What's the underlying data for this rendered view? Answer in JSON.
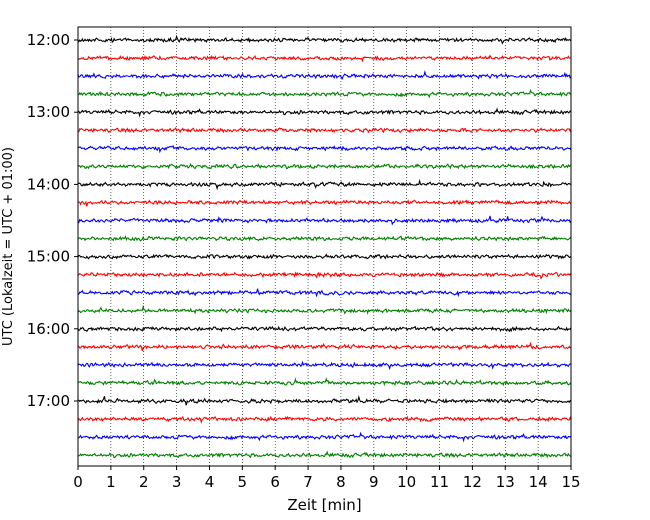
{
  "chart_data": {
    "type": "line",
    "title": "",
    "xlabel": "Zeit  [min]",
    "ylabel": "UTC (Lokalzeit = UTC + 01:00)",
    "xlim": [
      0,
      15
    ],
    "x_ticks": [
      0,
      1,
      2,
      3,
      4,
      5,
      6,
      7,
      8,
      9,
      10,
      11,
      12,
      13,
      14,
      15
    ],
    "x_tick_labels": [
      "0",
      "1",
      "2",
      "3",
      "4",
      "5",
      "6",
      "7",
      "8",
      "9",
      "10",
      "11",
      "12",
      "13",
      "14",
      "15"
    ],
    "y_tick_labels": [
      "12:00",
      "13:00",
      "14:00",
      "15:00",
      "16:00",
      "17:00"
    ],
    "x_grid": "dotted vertical lines at each minute",
    "trace_interval_minutes": 15,
    "traces": [
      {
        "start": "12:00",
        "color": "#000000"
      },
      {
        "start": "12:15",
        "color": "#ff0000"
      },
      {
        "start": "12:30",
        "color": "#0000ff"
      },
      {
        "start": "12:45",
        "color": "#008000"
      },
      {
        "start": "13:00",
        "color": "#000000"
      },
      {
        "start": "13:15",
        "color": "#ff0000"
      },
      {
        "start": "13:30",
        "color": "#0000ff"
      },
      {
        "start": "13:45",
        "color": "#008000"
      },
      {
        "start": "14:00",
        "color": "#000000"
      },
      {
        "start": "14:15",
        "color": "#ff0000"
      },
      {
        "start": "14:30",
        "color": "#0000ff"
      },
      {
        "start": "14:45",
        "color": "#008000"
      },
      {
        "start": "15:00",
        "color": "#000000"
      },
      {
        "start": "15:15",
        "color": "#ff0000"
      },
      {
        "start": "15:30",
        "color": "#0000ff"
      },
      {
        "start": "15:45",
        "color": "#008000"
      },
      {
        "start": "16:00",
        "color": "#000000"
      },
      {
        "start": "16:15",
        "color": "#ff0000"
      },
      {
        "start": "16:30",
        "color": "#0000ff"
      },
      {
        "start": "16:45",
        "color": "#008000"
      },
      {
        "start": "17:00",
        "color": "#000000"
      },
      {
        "start": "17:15",
        "color": "#ff0000"
      },
      {
        "start": "17:30",
        "color": "#0000ff"
      },
      {
        "start": "17:45",
        "color": "#008000"
      }
    ]
  }
}
